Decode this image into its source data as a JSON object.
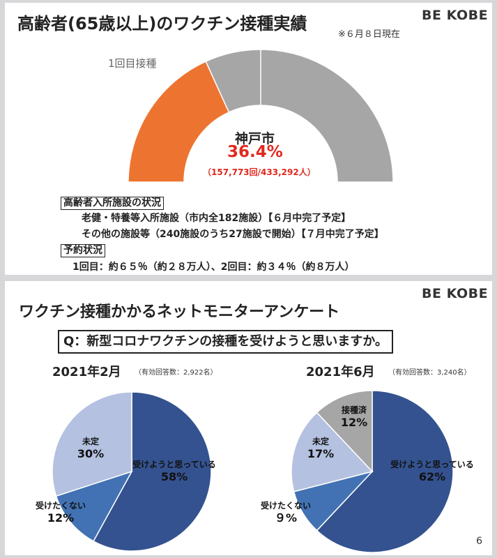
{
  "vaccination_panel": {
    "title": "高齢者(65歳以上)のワクチン接種実績",
    "as_of": "※６月８日現在",
    "logo": "BE KOBE",
    "gauge_legend": "1回目接種",
    "city": "神戸市",
    "rate_label": "36.4%",
    "detail": "（157,773回/433,292人）",
    "facility_heading": "高齢者入所施設の状況",
    "facility_line1": "老健・特養等入所施設（市内全182施設）【６月中完了予定】",
    "facility_line2": "その他の施設等（240施設のうち27施設で開始）【７月中完了予定】",
    "booking_heading": "予約状況",
    "booking_line": "1回目：約６５％（約２８万人）、2回目：約３４％（約８万人）",
    "colors": {
      "done": "#ed7430",
      "remaining": "#a6a6a6",
      "accent_red": "#e0281e"
    }
  },
  "survey_panel": {
    "title": "ワクチン接種かかるネットモニターアンケート",
    "logo": "BE KOBE",
    "question": "Q：新型コロナワクチンの接種を受けようと思いますか。",
    "page_number": "6"
  },
  "chart_data": [
    {
      "type": "pie",
      "title": "高齢者(65歳以上)のワクチン接種実績",
      "subtitle": "1回目接種",
      "values": [
        36.4,
        63.6
      ],
      "colors": [
        "#ed7430",
        "#a6a6a6"
      ],
      "center_label": "神戸市",
      "value_label": "36.4%",
      "detail": "（157,773回/433,292人）"
    },
    {
      "type": "pie",
      "title": "2021年2月",
      "subtitle": "（有効回答数：2,922名）",
      "slices": [
        {
          "label": "受けようと思っている",
          "value": 58,
          "value_label": "58%",
          "color": "#34528f"
        },
        {
          "label": "受けたくない",
          "value": 12,
          "value_label": "12%",
          "color": "#4272b3"
        },
        {
          "label": "未定",
          "value": 30,
          "value_label": "30%",
          "color": "#b4c1e0"
        }
      ]
    },
    {
      "type": "pie",
      "title": "2021年6月",
      "subtitle": "（有効回答数：3,240名）",
      "slices": [
        {
          "label": "受けようと思っている",
          "value": 62,
          "value_label": "62%",
          "color": "#34528f"
        },
        {
          "label": "受けたくない",
          "value": 9,
          "value_label": "９%",
          "color": "#4272b3"
        },
        {
          "label": "未定",
          "value": 17,
          "value_label": "17%",
          "color": "#b4c1e0"
        },
        {
          "label": "接種済",
          "value": 12,
          "value_label": "12%",
          "color": "#a6a6a6"
        }
      ]
    }
  ]
}
